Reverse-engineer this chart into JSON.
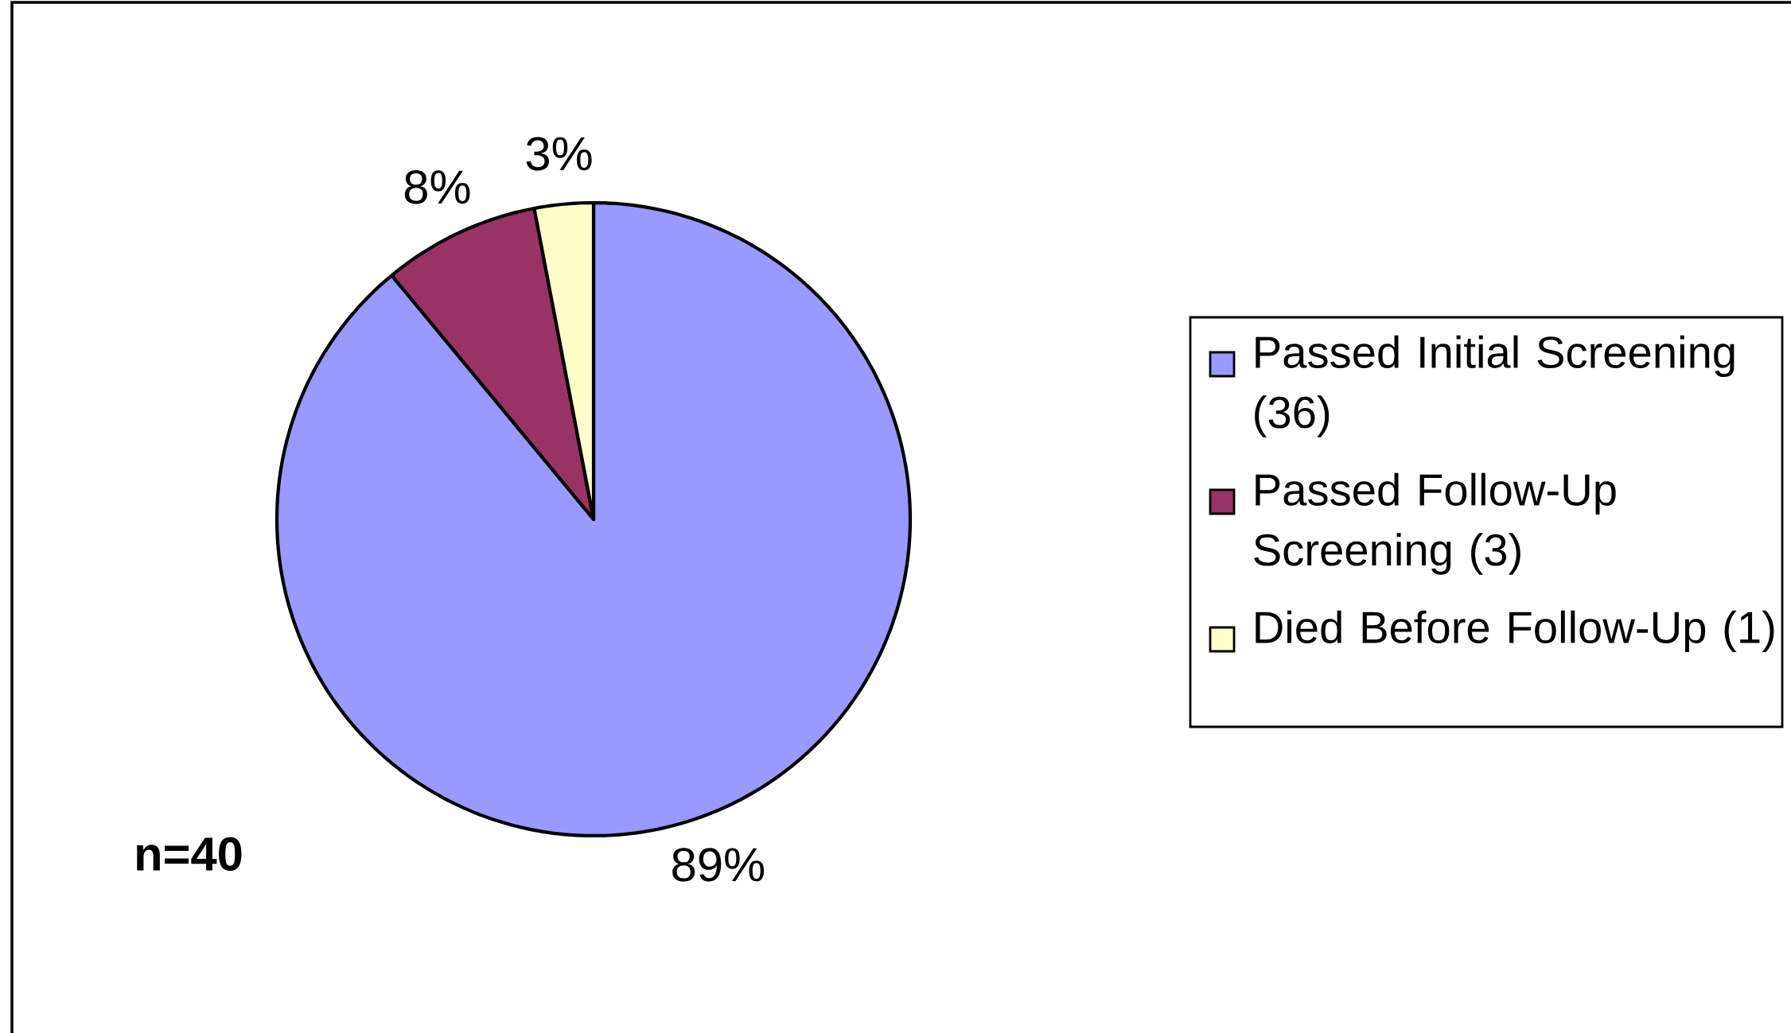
{
  "chart_data": {
    "type": "pie",
    "categories": [
      "Passed Initial Screening (36)",
      "Passed Follow-Up Screening (3)",
      "Died Before Follow-Up (1)"
    ],
    "values": [
      89,
      8,
      3
    ],
    "value_labels": [
      "89%",
      "8%",
      "3%"
    ],
    "colors": [
      "#9999ff",
      "#993366",
      "#ffffcc"
    ],
    "legend": "right",
    "annotations": [
      "n=40"
    ]
  }
}
